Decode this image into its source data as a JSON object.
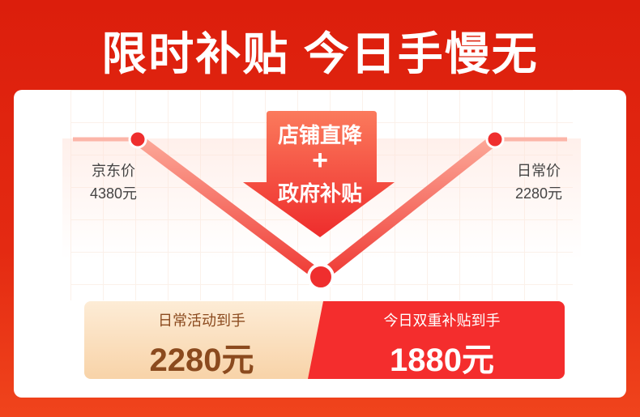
{
  "header": {
    "title": "限时补贴 今日手慢无"
  },
  "chart": {
    "arrow_top": "店铺直降",
    "arrow_plus": "+",
    "arrow_bottom": "政府补贴",
    "left_label": "京东价",
    "left_price": "4380元",
    "right_label": "日常价",
    "right_price": "2280元"
  },
  "pricebar": {
    "left_label": "日常活动到手",
    "left_price": "2280元",
    "right_label": "今日双重补贴到手",
    "right_price": "1880元"
  },
  "colors": {
    "brand_red": "#e42a12",
    "accent_red": "#f42d2d",
    "brown": "#8b4a1e"
  }
}
